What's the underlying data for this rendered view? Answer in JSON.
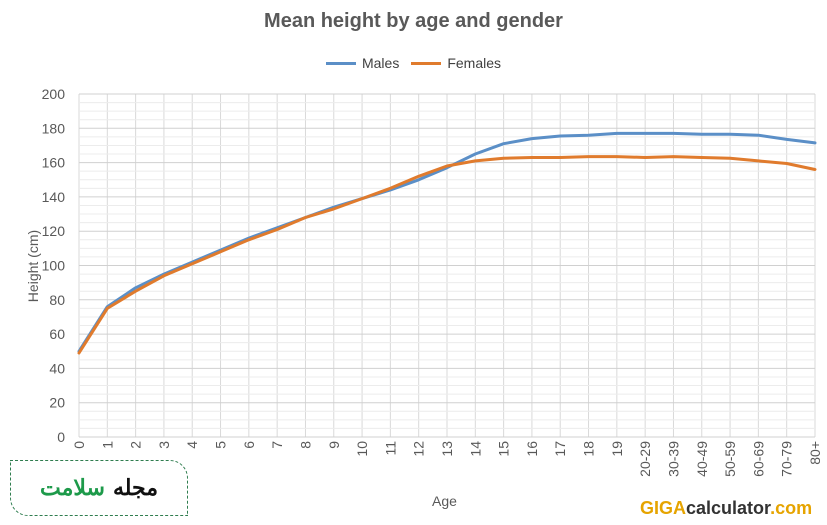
{
  "colors": {
    "males": "#5b8fc7",
    "females": "#e07b2d",
    "grid": "#d9d9d9",
    "axis_text": "#595959"
  },
  "chart_data": {
    "type": "line",
    "title": "Mean height by age and gender",
    "xlabel": "Age",
    "ylabel": "Height (cm)",
    "ylim": [
      0,
      200
    ],
    "yticks": [
      0,
      20,
      40,
      60,
      80,
      100,
      120,
      140,
      160,
      180,
      200
    ],
    "grid": true,
    "legend": "top-center",
    "categories": [
      "0",
      "1",
      "2",
      "3",
      "4",
      "5",
      "6",
      "7",
      "8",
      "9",
      "10",
      "11",
      "12",
      "13",
      "14",
      "15",
      "16",
      "17",
      "18",
      "19",
      "20-29",
      "30-39",
      "40-49",
      "50-59",
      "60-69",
      "70-79",
      "80+"
    ],
    "series": [
      {
        "name": "Males",
        "values": [
          50,
          76,
          87,
          95,
          102,
          109,
          116,
          122,
          128,
          134,
          139,
          144,
          150,
          157,
          165,
          171,
          174,
          175.5,
          176,
          177,
          177,
          177,
          176.5,
          176.5,
          176,
          173.5,
          171.5
        ]
      },
      {
        "name": "Females",
        "values": [
          49,
          75,
          85,
          94,
          101,
          108,
          115,
          121,
          128,
          133,
          139,
          145,
          152,
          158,
          161,
          162.5,
          163,
          163,
          163.5,
          163.5,
          163,
          163.5,
          163,
          162.5,
          161,
          159.5,
          156
        ]
      }
    ]
  },
  "badge": {
    "word1": "مجله",
    "word2": "سلامت"
  },
  "watermark": {
    "part1": "GIGA",
    "part2": "calculator",
    "part3": ".com"
  }
}
